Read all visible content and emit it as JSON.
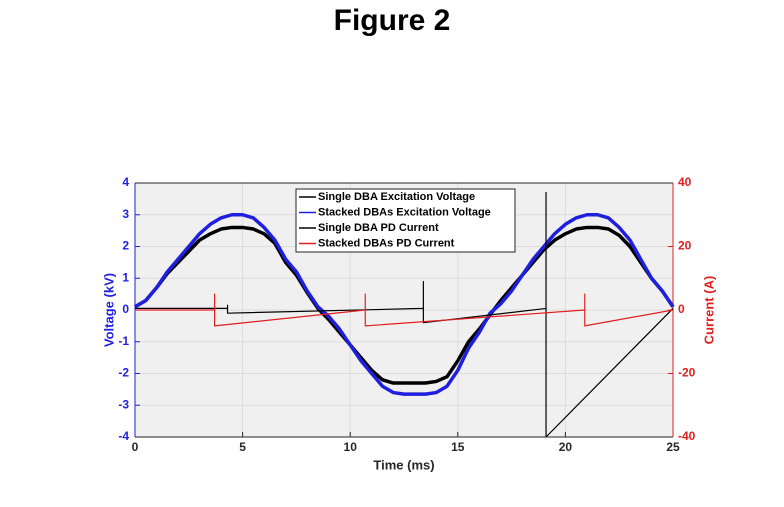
{
  "chart_data": {
    "type": "line",
    "title": "Figure 2",
    "xlabel": "Time (ms)",
    "ylabel": "Voltage (kV)",
    "y2label": "Current (A)",
    "xlim": [
      0,
      25
    ],
    "xticks": [
      0,
      5,
      10,
      15,
      20,
      25
    ],
    "ylim": [
      -4,
      4
    ],
    "yticks": [
      -4,
      -3,
      -2,
      -1,
      0,
      1,
      2,
      3,
      4
    ],
    "y2lim": [
      -40,
      40
    ],
    "y2ticks": [
      -40,
      -20,
      0,
      20,
      40
    ],
    "grid": true,
    "legend": "upper center",
    "ycolor": "#1f1fe0",
    "y2color": "#e01f1f",
    "series": [
      {
        "name": "Single DBA Excitation Voltage",
        "color": "#000000",
        "x": [
          0,
          0.5,
          1,
          1.5,
          2,
          2.5,
          3,
          3.5,
          4,
          4.5,
          5,
          5.5,
          6,
          6.5,
          7,
          7.5,
          8,
          8.5,
          9,
          9.5,
          10,
          10.5,
          11,
          11.5,
          12,
          12.5,
          13,
          13.5,
          14,
          14.5,
          15,
          15.5,
          16,
          16.5,
          17,
          17.5,
          18,
          18.5,
          19,
          19.5,
          20,
          20.5,
          21,
          21.5,
          22,
          22.5,
          23,
          23.5,
          24,
          24.5,
          25
        ],
        "values": [
          0.1,
          0.3,
          0.7,
          1.15,
          1.5,
          1.85,
          2.2,
          2.4,
          2.55,
          2.6,
          2.6,
          2.55,
          2.4,
          2.1,
          1.5,
          1.1,
          0.55,
          0.05,
          -0.3,
          -0.7,
          -1.1,
          -1.5,
          -1.9,
          -2.2,
          -2.3,
          -2.3,
          -2.3,
          -2.3,
          -2.25,
          -2.1,
          -1.6,
          -1.0,
          -0.6,
          -0.15,
          0.3,
          0.7,
          1.1,
          1.5,
          1.9,
          2.2,
          2.4,
          2.55,
          2.6,
          2.6,
          2.55,
          2.35,
          2.0,
          1.5,
          1.0,
          0.6,
          0.1
        ]
      },
      {
        "name": "Stacked DBAs Excitation Voltage",
        "color": "#1f1fe0",
        "x": [
          0,
          0.5,
          1,
          1.5,
          2,
          2.5,
          3,
          3.5,
          4,
          4.5,
          5,
          5.5,
          6,
          6.5,
          7,
          7.5,
          8,
          8.5,
          9,
          9.5,
          10,
          10.5,
          11,
          11.5,
          12,
          12.5,
          13,
          13.5,
          14,
          14.5,
          15,
          15.5,
          16,
          16.5,
          17,
          17.5,
          18,
          18.5,
          19,
          19.5,
          20,
          20.5,
          21,
          21.5,
          22,
          22.5,
          23,
          23.5,
          24,
          24.5,
          25
        ],
        "values": [
          0.1,
          0.3,
          0.7,
          1.2,
          1.6,
          2.0,
          2.4,
          2.7,
          2.9,
          3.0,
          3.0,
          2.9,
          2.6,
          2.2,
          1.6,
          1.2,
          0.6,
          0.1,
          -0.2,
          -0.6,
          -1.1,
          -1.6,
          -2.0,
          -2.4,
          -2.6,
          -2.65,
          -2.65,
          -2.65,
          -2.6,
          -2.4,
          -1.9,
          -1.2,
          -0.7,
          -0.1,
          0.2,
          0.6,
          1.1,
          1.6,
          2.0,
          2.4,
          2.7,
          2.9,
          3.0,
          3.0,
          2.9,
          2.6,
          2.2,
          1.6,
          1.0,
          0.6,
          0.1
        ]
      },
      {
        "name": "Single DBA PD Current",
        "color": "#000000",
        "axis": "y2",
        "x": [
          0,
          4.3,
          4.3,
          4.3,
          13.4,
          13.4,
          13.4,
          19.1,
          19.1,
          19.1,
          25
        ],
        "values": [
          0.5,
          0.5,
          1.5,
          -1,
          0.5,
          9,
          -4,
          0.5,
          37,
          -40,
          0.5
        ]
      },
      {
        "name": "Stacked DBAs PD Current",
        "color": "#e01f1f",
        "axis": "y2",
        "x": [
          0,
          3.7,
          3.7,
          3.7,
          10.7,
          10.7,
          10.7,
          20.9,
          20.9,
          20.9,
          25
        ],
        "values": [
          0,
          0,
          5,
          -5,
          0,
          5,
          -5,
          0,
          5,
          -5,
          0
        ]
      }
    ]
  }
}
